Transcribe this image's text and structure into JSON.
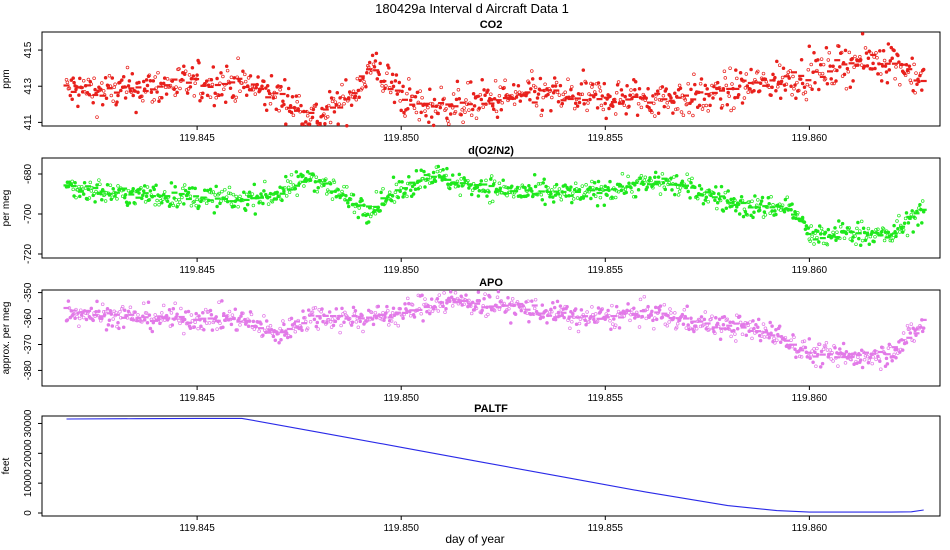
{
  "figure": {
    "title": "180429a   Interval d Aircraft Data 1",
    "xlabel": "day of year"
  },
  "chart_data": [
    {
      "type": "scatter",
      "title": "CO2",
      "ylabel": "ppm",
      "color": "#e8201c",
      "xlim": [
        119.8412,
        119.8632
      ],
      "ylim": [
        410.8,
        416.0
      ],
      "yticks": [
        411,
        413,
        415
      ],
      "xticks": [
        119.845,
        119.85,
        119.855,
        119.86
      ],
      "xticklabels": [
        "119.845",
        "119.850",
        "119.855",
        "119.860"
      ],
      "series": [
        {
          "knots_x": [
            119.8418,
            119.843,
            119.8445,
            119.846,
            119.847,
            119.848,
            119.8487,
            119.8493,
            119.85,
            119.8505,
            119.8515,
            119.853,
            119.8545,
            119.856,
            119.8575,
            119.8585,
            119.86,
            119.861,
            119.862,
            119.8628
          ],
          "knots_y": [
            412.8,
            412.7,
            413.1,
            413.2,
            412.4,
            411.2,
            412.3,
            414.1,
            412.5,
            411.8,
            412.0,
            412.5,
            412.4,
            412.3,
            412.4,
            413.0,
            413.6,
            414.3,
            414.5,
            413.3
          ],
          "scatter": 0.55
        }
      ]
    },
    {
      "type": "scatter",
      "title": "d(O2/N2)",
      "ylabel": "per meg",
      "color": "#1ee81c",
      "xlim": [
        119.8412,
        119.8632
      ],
      "ylim": [
        -722,
        -672
      ],
      "yticks": [
        -720,
        -700,
        -680
      ],
      "xticks": [
        119.845,
        119.85,
        119.855,
        119.86
      ],
      "xticklabels": [
        "119.845",
        "119.850",
        "119.855",
        "119.860"
      ],
      "series": [
        {
          "knots_x": [
            119.8418,
            119.843,
            119.8445,
            119.846,
            119.847,
            119.8478,
            119.8485,
            119.8492,
            119.85,
            119.8507,
            119.8515,
            119.8525,
            119.8535,
            119.8545,
            119.8555,
            119.8565,
            119.8575,
            119.8585,
            119.8595,
            119.8601,
            119.861,
            119.862,
            119.8628
          ],
          "knots_y": [
            -686,
            -690,
            -691,
            -693,
            -690,
            -681,
            -690,
            -698,
            -688,
            -680,
            -685,
            -688,
            -690,
            -690,
            -686,
            -684,
            -690,
            -697,
            -696,
            -712,
            -709,
            -711,
            -697
          ],
          "scatter": 3.0
        }
      ]
    },
    {
      "type": "scatter",
      "title": "APO",
      "ylabel": "approx. per meg",
      "color": "#e27ae8",
      "xlim": [
        119.8412,
        119.8632
      ],
      "ylim": [
        -386,
        -349
      ],
      "yticks": [
        -380,
        -370,
        -360,
        -350
      ],
      "xticks": [
        119.845,
        119.85,
        119.855,
        119.86
      ],
      "xticklabels": [
        "119.845",
        "119.850",
        "119.855",
        "119.860"
      ],
      "series": [
        {
          "knots_x": [
            119.8418,
            119.843,
            119.8445,
            119.846,
            119.847,
            119.8478,
            119.849,
            119.85,
            119.851,
            119.8525,
            119.8545,
            119.856,
            119.8575,
            119.859,
            119.86,
            119.861,
            119.862,
            119.8628
          ],
          "knots_y": [
            -357,
            -359,
            -360,
            -360,
            -366,
            -359,
            -360,
            -358,
            -353,
            -355,
            -360,
            -358,
            -362,
            -365,
            -373,
            -375,
            -373,
            -362
          ],
          "scatter": 2.4
        }
      ]
    },
    {
      "type": "line",
      "title": "PALTF",
      "ylabel": "feet",
      "color": "#2a2ae8",
      "xlim": [
        119.8412,
        119.8632
      ],
      "ylim": [
        -1000,
        32500
      ],
      "yticks": [
        0,
        10000,
        20000,
        30000
      ],
      "xticks": [
        119.845,
        119.85,
        119.855,
        119.86
      ],
      "xticklabels": [
        "119.845",
        "119.850",
        "119.855",
        "119.860"
      ],
      "series": [
        {
          "x": [
            119.8418,
            119.8435,
            119.845,
            119.8461,
            119.848,
            119.85,
            119.852,
            119.854,
            119.856,
            119.858,
            119.8592,
            119.86,
            119.861,
            119.862,
            119.8625,
            119.8628
          ],
          "y": [
            31500,
            31600,
            31700,
            31700,
            27000,
            22000,
            17000,
            12000,
            7000,
            2500,
            800,
            300,
            300,
            300,
            400,
            1000
          ]
        }
      ]
    }
  ]
}
